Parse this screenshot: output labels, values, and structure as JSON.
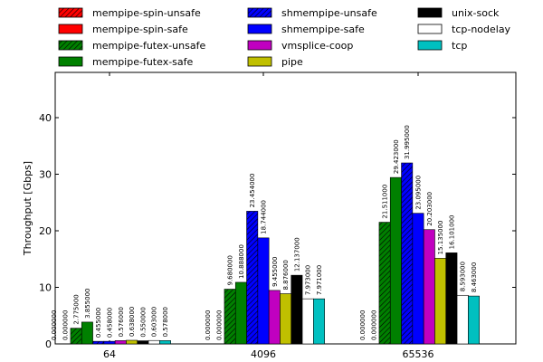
{
  "chart_data": {
    "type": "bar",
    "title": "",
    "xlabel": "",
    "ylabel": "Throughput [Gbps]",
    "ylim": [
      0,
      48
    ],
    "yticks": [
      0,
      10,
      20,
      30,
      40
    ],
    "grid": false,
    "legend_position": "top",
    "categories": [
      "64",
      "4096",
      "65536"
    ],
    "series": [
      {
        "name": "mempipe-spin-unsafe",
        "color": "#ff0000",
        "hatch": true,
        "values": [
          0.0,
          0.0,
          0.0
        ],
        "labels": [
          "0.000000",
          "0.000000",
          "0.000000"
        ]
      },
      {
        "name": "mempipe-spin-safe",
        "color": "#ff0000",
        "hatch": false,
        "values": [
          0.0,
          0.0,
          0.0
        ],
        "labels": [
          "0.000000",
          "0.000000",
          "0.000000"
        ]
      },
      {
        "name": "mempipe-futex-unsafe",
        "color": "#008000",
        "hatch": true,
        "values": [
          2.775,
          9.68,
          21.511
        ],
        "labels": [
          "2.775000",
          "9.680000",
          "21.511000"
        ]
      },
      {
        "name": "mempipe-futex-safe",
        "color": "#008000",
        "hatch": false,
        "values": [
          3.855,
          10.888,
          29.423
        ],
        "labels": [
          "3.855000",
          "10.888000",
          "29.423000"
        ]
      },
      {
        "name": "shmempipe-unsafe",
        "color": "#0000ff",
        "hatch": true,
        "values": [
          0.455,
          23.454,
          31.995
        ],
        "labels": [
          "0.455000",
          "23.454000",
          "31.995000"
        ]
      },
      {
        "name": "shmempipe-safe",
        "color": "#0000ff",
        "hatch": false,
        "values": [
          0.458,
          18.744,
          23.095
        ],
        "labels": [
          "0.458000",
          "18.744000",
          "23.095000"
        ]
      },
      {
        "name": "vmsplice-coop",
        "color": "#c000c0",
        "hatch": false,
        "values": [
          0.576,
          9.455,
          20.203
        ],
        "labels": [
          "0.576000",
          "9.455000",
          "20.203000"
        ]
      },
      {
        "name": "pipe",
        "color": "#c0c000",
        "hatch": false,
        "values": [
          0.638,
          8.876,
          15.135
        ],
        "labels": [
          "0.638000",
          "8.876000",
          "15.135000"
        ]
      },
      {
        "name": "unix-sock",
        "color": "#000000",
        "hatch": false,
        "values": [
          0.55,
          12.137,
          16.101
        ],
        "labels": [
          "0.550000",
          "12.137000",
          "16.101000"
        ]
      },
      {
        "name": "tcp-nodelay",
        "color": "#ffffff",
        "hatch": false,
        "values": [
          0.603,
          7.973,
          8.593
        ],
        "labels": [
          "0.603000",
          "7.973000",
          "8.593000"
        ]
      },
      {
        "name": "tcp",
        "color": "#00c0c0",
        "hatch": false,
        "values": [
          0.578,
          7.971,
          8.463
        ],
        "labels": [
          "0.578000",
          "7.971000",
          "8.463000"
        ]
      }
    ]
  }
}
